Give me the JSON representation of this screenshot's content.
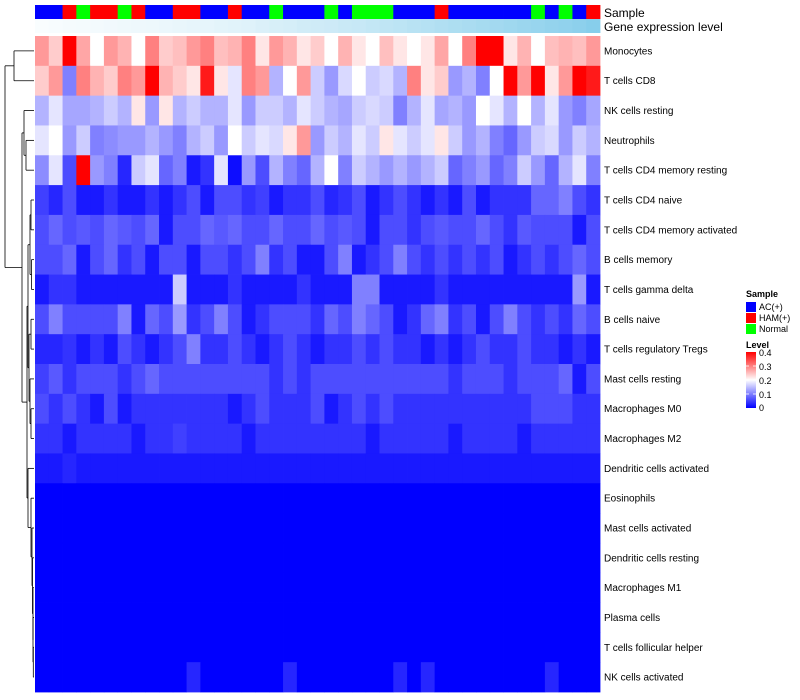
{
  "chart_data": {
    "type": "heatmap",
    "annotation_labels": [
      "Sample",
      "Gene expression level"
    ],
    "sample_groups": [
      "AC(+)",
      "HAM(+)",
      "Normal"
    ],
    "sample_annotation": [
      "AC(+)",
      "AC(+)",
      "HAM(+)",
      "Normal",
      "HAM(+)",
      "HAM(+)",
      "Normal",
      "HAM(+)",
      "AC(+)",
      "AC(+)",
      "HAM(+)",
      "HAM(+)",
      "AC(+)",
      "AC(+)",
      "HAM(+)",
      "AC(+)",
      "AC(+)",
      "Normal",
      "AC(+)",
      "AC(+)",
      "AC(+)",
      "Normal",
      "AC(+)",
      "Normal",
      "Normal",
      "Normal",
      "AC(+)",
      "AC(+)",
      "AC(+)",
      "HAM(+)",
      "AC(+)",
      "AC(+)",
      "AC(+)",
      "AC(+)",
      "AC(+)",
      "AC(+)",
      "Normal",
      "AC(+)",
      "Normal",
      "AC(+)",
      "HAM(+)"
    ],
    "gene_expression_annotation": [
      0.05,
      0.07,
      0.08,
      0.09,
      0.1,
      0.12,
      0.13,
      0.14,
      0.15,
      0.17,
      0.18,
      0.2,
      0.21,
      0.23,
      0.25,
      0.27,
      0.3,
      0.33,
      0.35,
      0.38,
      0.4,
      0.42,
      0.45,
      0.47,
      0.5,
      0.53,
      0.56,
      0.59,
      0.62,
      0.65,
      0.68,
      0.71,
      0.74,
      0.77,
      0.8,
      0.83,
      0.86,
      0.89,
      0.92,
      0.95,
      1.0
    ],
    "rows": [
      "Monocytes",
      "T cells CD8",
      "NK cells resting",
      "Neutrophils",
      "T cells CD4 memory resting",
      "T cells CD4 naive",
      "T cells CD4 memory activated",
      "B cells memory",
      "T cells gamma delta",
      "B cells naive",
      "T cells regulatory  Tregs",
      "Mast cells resting",
      "Macrophages M0",
      "Macrophages M2",
      "Dendritic cells activated",
      "Eosinophils",
      "Mast cells activated",
      "Dendritic cells resting",
      "Macrophages M1",
      "Plasma cells",
      "T cells follicular helper",
      "NK cells activated"
    ],
    "legend": {
      "sample_title": "Sample",
      "level_title": "Level",
      "level_ticks": [
        "0.4",
        "0.3",
        "0.2",
        "0.1",
        "0"
      ],
      "range": [
        0,
        0.4
      ]
    },
    "values": [
      [
        0.28,
        0.24,
        0.4,
        0.27,
        0.2,
        0.28,
        0.26,
        0.2,
        0.3,
        0.24,
        0.25,
        0.28,
        0.3,
        0.25,
        0.26,
        0.3,
        0.22,
        0.28,
        0.26,
        0.22,
        0.24,
        0.2,
        0.26,
        0.22,
        0.2,
        0.25,
        0.22,
        0.2,
        0.22,
        0.27,
        0.2,
        0.3,
        0.4,
        0.4,
        0.22,
        0.26,
        0.2,
        0.25,
        0.26,
        0.25,
        0.28
      ],
      [
        0.24,
        0.28,
        0.1,
        0.3,
        0.26,
        0.24,
        0.3,
        0.28,
        0.4,
        0.26,
        0.24,
        0.22,
        0.38,
        0.22,
        0.18,
        0.3,
        0.28,
        0.14,
        0.2,
        0.28,
        0.16,
        0.12,
        0.17,
        0.2,
        0.16,
        0.17,
        0.14,
        0.3,
        0.22,
        0.24,
        0.12,
        0.14,
        0.1,
        0.2,
        0.4,
        0.28,
        0.4,
        0.22,
        0.28,
        0.4,
        0.38
      ],
      [
        0.14,
        0.18,
        0.13,
        0.13,
        0.14,
        0.16,
        0.14,
        0.22,
        0.12,
        0.22,
        0.14,
        0.16,
        0.14,
        0.14,
        0.18,
        0.12,
        0.16,
        0.16,
        0.14,
        0.18,
        0.16,
        0.14,
        0.13,
        0.16,
        0.17,
        0.16,
        0.1,
        0.14,
        0.18,
        0.13,
        0.14,
        0.12,
        0.2,
        0.18,
        0.14,
        0.2,
        0.14,
        0.18,
        0.12,
        0.1,
        0.13
      ],
      [
        0.18,
        0.2,
        0.12,
        0.16,
        0.1,
        0.11,
        0.12,
        0.12,
        0.14,
        0.12,
        0.1,
        0.14,
        0.16,
        0.12,
        0.2,
        0.16,
        0.18,
        0.17,
        0.22,
        0.28,
        0.12,
        0.16,
        0.14,
        0.18,
        0.16,
        0.22,
        0.18,
        0.16,
        0.18,
        0.22,
        0.16,
        0.12,
        0.14,
        0.1,
        0.08,
        0.12,
        0.16,
        0.17,
        0.12,
        0.16,
        0.14
      ],
      [
        0.11,
        0.18,
        0.06,
        0.4,
        0.12,
        0.1,
        0.03,
        0.16,
        0.18,
        0.08,
        0.1,
        0.02,
        0.04,
        0.18,
        0.01,
        0.12,
        0.06,
        0.14,
        0.1,
        0.08,
        0.14,
        0.2,
        0.1,
        0.16,
        0.14,
        0.12,
        0.14,
        0.12,
        0.14,
        0.16,
        0.08,
        0.1,
        0.12,
        0.08,
        0.1,
        0.16,
        0.12,
        0.08,
        0.14,
        0.18,
        0.1
      ],
      [
        0.05,
        0.03,
        0.06,
        0.02,
        0.02,
        0.04,
        0.02,
        0.02,
        0.04,
        0.02,
        0.04,
        0.06,
        0.02,
        0.06,
        0.06,
        0.04,
        0.05,
        0.02,
        0.04,
        0.04,
        0.06,
        0.03,
        0.04,
        0.06,
        0.02,
        0.04,
        0.06,
        0.04,
        0.02,
        0.04,
        0.02,
        0.06,
        0.02,
        0.04,
        0.04,
        0.04,
        0.08,
        0.08,
        0.1,
        0.06,
        0.04
      ],
      [
        0.06,
        0.08,
        0.06,
        0.07,
        0.06,
        0.08,
        0.07,
        0.06,
        0.08,
        0.02,
        0.06,
        0.06,
        0.08,
        0.07,
        0.08,
        0.06,
        0.06,
        0.08,
        0.06,
        0.06,
        0.08,
        0.06,
        0.07,
        0.06,
        0.02,
        0.06,
        0.06,
        0.04,
        0.06,
        0.07,
        0.06,
        0.06,
        0.08,
        0.06,
        0.04,
        0.07,
        0.06,
        0.06,
        0.06,
        0.02,
        0.06
      ],
      [
        0.06,
        0.06,
        0.08,
        0.02,
        0.06,
        0.08,
        0.04,
        0.06,
        0.02,
        0.06,
        0.06,
        0.02,
        0.06,
        0.06,
        0.04,
        0.06,
        0.1,
        0.04,
        0.06,
        0.02,
        0.02,
        0.06,
        0.1,
        0.02,
        0.04,
        0.06,
        0.1,
        0.06,
        0.04,
        0.06,
        0.04,
        0.06,
        0.04,
        0.06,
        0.02,
        0.04,
        0.06,
        0.04,
        0.06,
        0.08,
        0.06
      ],
      [
        0.02,
        0.04,
        0.04,
        0.02,
        0.02,
        0.02,
        0.02,
        0.02,
        0.02,
        0.02,
        0.16,
        0.02,
        0.02,
        0.02,
        0.04,
        0.02,
        0.02,
        0.02,
        0.02,
        0.04,
        0.02,
        0.02,
        0.02,
        0.1,
        0.1,
        0.02,
        0.02,
        0.02,
        0.02,
        0.04,
        0.02,
        0.02,
        0.02,
        0.02,
        0.02,
        0.02,
        0.02,
        0.02,
        0.02,
        0.12,
        0.02
      ],
      [
        0.06,
        0.1,
        0.06,
        0.06,
        0.06,
        0.06,
        0.1,
        0.02,
        0.08,
        0.06,
        0.12,
        0.04,
        0.06,
        0.1,
        0.06,
        0.02,
        0.04,
        0.06,
        0.06,
        0.06,
        0.04,
        0.08,
        0.06,
        0.1,
        0.08,
        0.06,
        0.02,
        0.04,
        0.08,
        0.1,
        0.04,
        0.06,
        0.02,
        0.06,
        0.1,
        0.06,
        0.04,
        0.06,
        0.04,
        0.08,
        0.06
      ],
      [
        0.03,
        0.03,
        0.04,
        0.02,
        0.04,
        0.02,
        0.06,
        0.04,
        0.02,
        0.04,
        0.06,
        0.1,
        0.04,
        0.04,
        0.06,
        0.04,
        0.02,
        0.04,
        0.06,
        0.04,
        0.02,
        0.04,
        0.04,
        0.06,
        0.04,
        0.06,
        0.04,
        0.04,
        0.02,
        0.04,
        0.02,
        0.04,
        0.06,
        0.04,
        0.04,
        0.06,
        0.04,
        0.04,
        0.02,
        0.04,
        0.02
      ],
      [
        0.05,
        0.07,
        0.04,
        0.06,
        0.06,
        0.06,
        0.04,
        0.06,
        0.08,
        0.06,
        0.06,
        0.06,
        0.06,
        0.06,
        0.06,
        0.06,
        0.06,
        0.04,
        0.06,
        0.04,
        0.06,
        0.06,
        0.06,
        0.06,
        0.06,
        0.06,
        0.06,
        0.06,
        0.06,
        0.06,
        0.04,
        0.06,
        0.06,
        0.06,
        0.04,
        0.06,
        0.06,
        0.06,
        0.08,
        0.02,
        0.06
      ],
      [
        0.06,
        0.04,
        0.06,
        0.04,
        0.02,
        0.06,
        0.02,
        0.04,
        0.04,
        0.04,
        0.04,
        0.04,
        0.04,
        0.04,
        0.02,
        0.04,
        0.06,
        0.04,
        0.04,
        0.04,
        0.06,
        0.02,
        0.04,
        0.06,
        0.04,
        0.06,
        0.04,
        0.04,
        0.04,
        0.04,
        0.04,
        0.04,
        0.04,
        0.04,
        0.04,
        0.04,
        0.06,
        0.06,
        0.06,
        0.04,
        0.04
      ],
      [
        0.04,
        0.04,
        0.02,
        0.04,
        0.04,
        0.04,
        0.04,
        0.02,
        0.04,
        0.04,
        0.05,
        0.04,
        0.04,
        0.04,
        0.04,
        0.02,
        0.04,
        0.04,
        0.04,
        0.04,
        0.04,
        0.04,
        0.04,
        0.04,
        0.02,
        0.04,
        0.04,
        0.04,
        0.04,
        0.04,
        0.02,
        0.04,
        0.04,
        0.04,
        0.04,
        0.02,
        0.04,
        0.04,
        0.04,
        0.04,
        0.04
      ],
      [
        0.02,
        0.02,
        0.03,
        0.02,
        0.02,
        0.02,
        0.02,
        0.02,
        0.02,
        0.02,
        0.02,
        0.02,
        0.02,
        0.02,
        0.02,
        0.02,
        0.02,
        0.02,
        0.02,
        0.02,
        0.02,
        0.02,
        0.02,
        0.02,
        0.02,
        0.02,
        0.02,
        0.02,
        0.02,
        0.02,
        0.02,
        0.02,
        0.02,
        0.02,
        0.02,
        0.02,
        0.02,
        0.02,
        0.02,
        0.02,
        0.02
      ],
      [
        0,
        0,
        0,
        0,
        0,
        0,
        0,
        0,
        0,
        0,
        0,
        0,
        0,
        0,
        0,
        0,
        0,
        0,
        0,
        0,
        0,
        0,
        0,
        0,
        0,
        0,
        0,
        0,
        0,
        0,
        0,
        0,
        0,
        0,
        0,
        0,
        0,
        0,
        0,
        0,
        0
      ],
      [
        0,
        0,
        0,
        0,
        0,
        0,
        0,
        0,
        0,
        0,
        0,
        0,
        0,
        0,
        0,
        0,
        0,
        0,
        0,
        0,
        0,
        0,
        0,
        0,
        0,
        0,
        0,
        0,
        0,
        0,
        0,
        0,
        0,
        0,
        0,
        0,
        0,
        0,
        0,
        0,
        0
      ],
      [
        0,
        0,
        0,
        0,
        0,
        0,
        0,
        0,
        0,
        0,
        0,
        0,
        0,
        0,
        0,
        0,
        0,
        0,
        0,
        0,
        0,
        0,
        0,
        0,
        0,
        0,
        0,
        0,
        0,
        0,
        0,
        0,
        0,
        0,
        0,
        0,
        0,
        0,
        0,
        0,
        0
      ],
      [
        0,
        0,
        0,
        0,
        0,
        0,
        0,
        0,
        0,
        0,
        0,
        0,
        0,
        0,
        0,
        0,
        0,
        0,
        0,
        0,
        0,
        0,
        0,
        0,
        0,
        0,
        0,
        0,
        0,
        0,
        0,
        0,
        0,
        0,
        0,
        0,
        0,
        0,
        0,
        0,
        0
      ],
      [
        0,
        0,
        0,
        0,
        0,
        0,
        0,
        0,
        0,
        0,
        0,
        0,
        0,
        0,
        0,
        0,
        0,
        0,
        0,
        0,
        0,
        0,
        0,
        0,
        0,
        0,
        0,
        0,
        0,
        0,
        0,
        0,
        0,
        0,
        0,
        0,
        0,
        0,
        0,
        0,
        0
      ],
      [
        0,
        0,
        0,
        0,
        0,
        0,
        0,
        0,
        0,
        0,
        0,
        0,
        0,
        0,
        0,
        0,
        0,
        0,
        0,
        0,
        0,
        0,
        0,
        0,
        0,
        0,
        0,
        0,
        0,
        0,
        0,
        0,
        0,
        0,
        0,
        0,
        0,
        0,
        0,
        0,
        0
      ],
      [
        0,
        0,
        0,
        0,
        0,
        0,
        0,
        0,
        0,
        0,
        0,
        0.03,
        0,
        0,
        0,
        0,
        0,
        0,
        0.03,
        0,
        0,
        0,
        0,
        0,
        0,
        0,
        0.03,
        0,
        0.03,
        0,
        0,
        0,
        0,
        0,
        0,
        0,
        0,
        0.03,
        0,
        0,
        0
      ]
    ]
  },
  "colors": {
    "AC(+)": "#0000ff",
    "HAM(+)": "#ff0000",
    "Normal": "#00ff00",
    "low": "#0000ff",
    "mid": "#ffffff",
    "high": "#ff0000",
    "gene_low": "#ffffff",
    "gene_high": "#87ceeb"
  }
}
